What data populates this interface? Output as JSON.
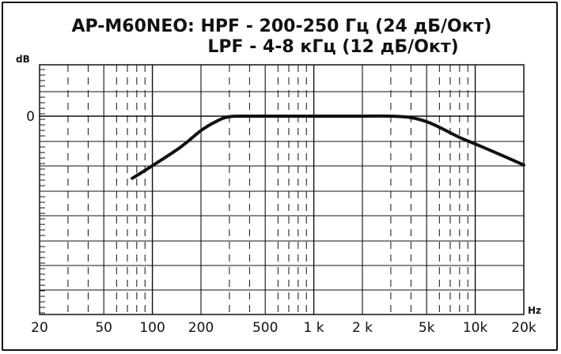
{
  "chart_data": {
    "type": "line",
    "title": "AP-M60NEO: HPF - 200-250 Гц (24 дБ/Окт)",
    "subtitle": "LPF - 4-8 кГц (12 дБ/Окт)",
    "xlabel": "Hz",
    "ylabel": "dB",
    "x_scale": "log",
    "xlim": [
      20,
      20000
    ],
    "x_ticks": [
      {
        "value": 20,
        "label": "20"
      },
      {
        "value": 50,
        "label": "50"
      },
      {
        "value": 100,
        "label": "100"
      },
      {
        "value": 200,
        "label": "200"
      },
      {
        "value": 500,
        "label": "500"
      },
      {
        "value": 1000,
        "label": "1 k"
      },
      {
        "value": 2000,
        "label": "2 k"
      },
      {
        "value": 5000,
        "label": "5k"
      },
      {
        "value": 10000,
        "label": "10k"
      },
      {
        "value": 20000,
        "label": "20k"
      }
    ],
    "y_ticks": [
      {
        "value": 0,
        "label": "0"
      }
    ],
    "grid": true,
    "series": [
      {
        "x": [
          75,
          100,
          150,
          200,
          250,
          300,
          400,
          700,
          1000,
          2000,
          3000,
          4000,
          5000,
          6000,
          8000,
          10000,
          15000,
          20000
        ],
        "y": [
          -24.6,
          -19.6,
          -12.2,
          -5.7,
          -2.0,
          -0.2,
          0,
          0,
          0,
          0,
          0,
          -0.6,
          -2.2,
          -4.4,
          -8.4,
          -11.0,
          -15.8,
          -19.3
        ]
      }
    ]
  }
}
